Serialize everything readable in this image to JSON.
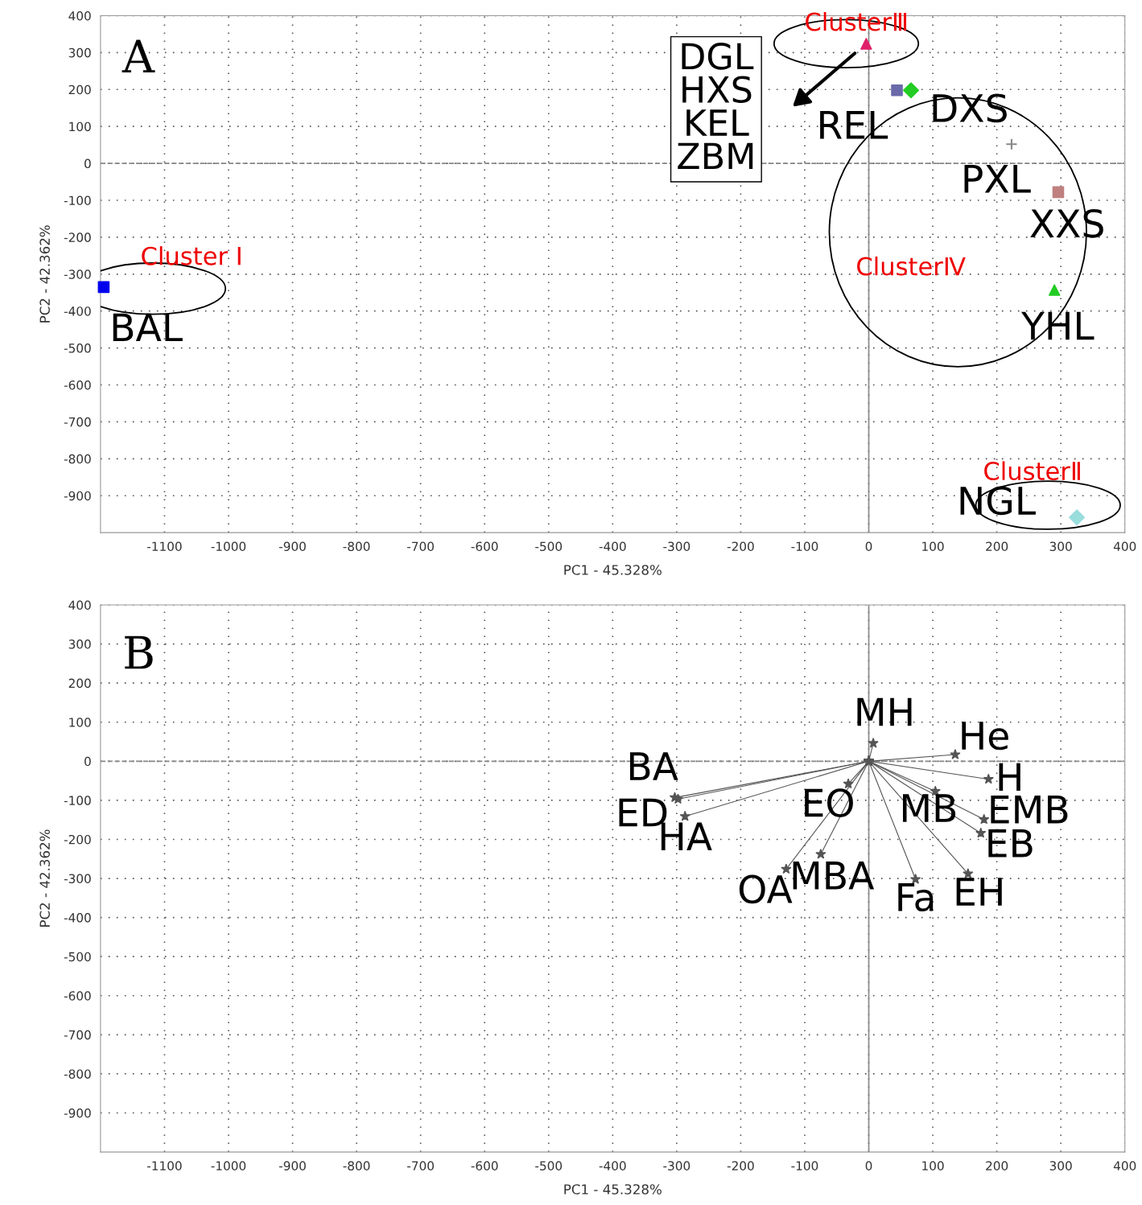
{
  "chart_data": [
    {
      "type": "scatter",
      "xlabel": "PC1 - 45.328%",
      "ylabel": "PC2 - 42.362%",
      "xlim": [
        -1200,
        400
      ],
      "ylim": [
        -1000,
        400
      ],
      "xticks": [
        -1100,
        -1000,
        -900,
        -800,
        -700,
        -600,
        -500,
        -400,
        -300,
        -200,
        -100,
        0,
        100,
        200,
        300,
        400
      ],
      "yticks": [
        -900,
        -800,
        -700,
        -600,
        -500,
        -400,
        -300,
        -200,
        -100,
        0,
        100,
        200,
        300,
        400
      ],
      "grid": true,
      "legend": false,
      "ref_lines": [
        {
          "axis": "x",
          "value": 0,
          "color": "#888888",
          "line_style": "solid"
        },
        {
          "axis": "y",
          "value": 0,
          "color": "#888888",
          "line_style": "dashed"
        }
      ],
      "series": [
        {
          "color": "#0000ee",
          "marker": "square",
          "x": [
            -1195
          ],
          "values": [
            -335
          ]
        },
        {
          "color": "#e0206a",
          "marker": "triangle",
          "x": [
            -4
          ],
          "values": [
            324
          ]
        },
        {
          "color": "#6a6aaa",
          "marker": "square",
          "x": [
            44
          ],
          "values": [
            198
          ]
        },
        {
          "color": "#22cc22",
          "marker": "diamond",
          "x": [
            66
          ],
          "values": [
            198
          ]
        },
        {
          "color": "#888888",
          "marker": "cross",
          "x": [
            223
          ],
          "values": [
            52
          ]
        },
        {
          "color": "#c08080",
          "marker": "square",
          "x": [
            296
          ],
          "values": [
            -78
          ]
        },
        {
          "color": "#22cc22",
          "marker": "triangle",
          "x": [
            290
          ],
          "values": [
            -343
          ]
        },
        {
          "color": "#99dddd",
          "marker": "diamond",
          "x": [
            325
          ],
          "values": [
            -959
          ]
        }
      ],
      "annotations": [
        "A",
        "Cluster Ⅰ",
        "ClusterⅢ",
        "ClusterⅣ",
        "ClusterⅡ",
        "DGL\nHXS\nKEL\nZBM",
        {
          "text": "BAL",
          "x": -1195,
          "y": -335
        },
        {
          "text": "REL",
          "x": 44,
          "y": 198
        },
        {
          "text": "DXS",
          "x": 66,
          "y": 198
        },
        {
          "text": "PXL",
          "x": 223,
          "y": 52
        },
        {
          "text": "XXS",
          "x": 296,
          "y": -78
        },
        {
          "text": "YHL",
          "x": 290,
          "y": -343
        },
        {
          "text": "NGL",
          "x": 325,
          "y": -959
        }
      ]
    },
    {
      "type": "line",
      "xlabel": "PC1 - 45.328%",
      "ylabel": "PC2 - 42.362%",
      "xlim": [
        -1200,
        400
      ],
      "ylim": [
        -1000,
        400
      ],
      "xticks": [
        -1100,
        -1000,
        -900,
        -800,
        -700,
        -600,
        -500,
        -400,
        -300,
        -200,
        -100,
        0,
        100,
        200,
        300,
        400
      ],
      "yticks": [
        -900,
        -800,
        -700,
        -600,
        -500,
        -400,
        -300,
        -200,
        -100,
        0,
        100,
        200,
        300,
        400
      ],
      "grid": true,
      "legend": false,
      "marker": "star",
      "ref_lines": [
        {
          "axis": "x",
          "value": 0,
          "color": "#888888",
          "line_style": "solid"
        },
        {
          "axis": "y",
          "value": 0,
          "color": "#888888",
          "line_style": "dashed"
        }
      ],
      "series": [
        {
          "color": "#555555",
          "x": [
            0,
            7
          ],
          "values": [
            0,
            46
          ]
        },
        {
          "color": "#555555",
          "x": [
            0,
            135
          ],
          "values": [
            0,
            17
          ]
        },
        {
          "color": "#555555",
          "x": [
            0,
            187
          ],
          "values": [
            0,
            -46
          ]
        },
        {
          "color": "#555555",
          "x": [
            0,
            104
          ],
          "values": [
            0,
            -77
          ]
        },
        {
          "color": "#555555",
          "x": [
            0,
            180
          ],
          "values": [
            0,
            -149
          ]
        },
        {
          "color": "#555555",
          "x": [
            0,
            175
          ],
          "values": [
            0,
            -184
          ]
        },
        {
          "color": "#555555",
          "x": [
            0,
            155
          ],
          "values": [
            0,
            -288
          ]
        },
        {
          "color": "#555555",
          "x": [
            0,
            73
          ],
          "values": [
            0,
            -302
          ]
        },
        {
          "color": "#555555",
          "x": [
            0,
            -75
          ],
          "values": [
            0,
            -238
          ]
        },
        {
          "color": "#555555",
          "x": [
            0,
            -129
          ],
          "values": [
            0,
            -276
          ]
        },
        {
          "color": "#555555",
          "x": [
            0,
            -32
          ],
          "values": [
            0,
            -58
          ]
        },
        {
          "color": "#555555",
          "x": [
            0,
            -303
          ],
          "values": [
            0,
            -93
          ]
        },
        {
          "color": "#555555",
          "x": [
            0,
            -298
          ],
          "values": [
            0,
            -97
          ]
        },
        {
          "color": "#555555",
          "x": [
            0,
            -287
          ],
          "values": [
            0,
            -141
          ]
        }
      ],
      "annotations": [
        "B",
        {
          "text": "MH",
          "x": 7,
          "y": 46
        },
        {
          "text": "He",
          "x": 135,
          "y": 17
        },
        {
          "text": "H",
          "x": 187,
          "y": -46
        },
        {
          "text": "MB",
          "x": 104,
          "y": -77
        },
        {
          "text": "EMB",
          "x": 180,
          "y": -149
        },
        {
          "text": "EB",
          "x": 175,
          "y": -184
        },
        {
          "text": "EH",
          "x": 155,
          "y": -288
        },
        {
          "text": "Fa",
          "x": 73,
          "y": -302
        },
        {
          "text": "MBA",
          "x": -75,
          "y": -238
        },
        {
          "text": "OA",
          "x": -129,
          "y": -276
        },
        {
          "text": "EO",
          "x": -32,
          "y": -58
        },
        {
          "text": "BA",
          "x": -303,
          "y": -93
        },
        {
          "text": "ED",
          "x": -298,
          "y": -97
        },
        {
          "text": "HA",
          "x": -287,
          "y": -141
        }
      ]
    }
  ]
}
